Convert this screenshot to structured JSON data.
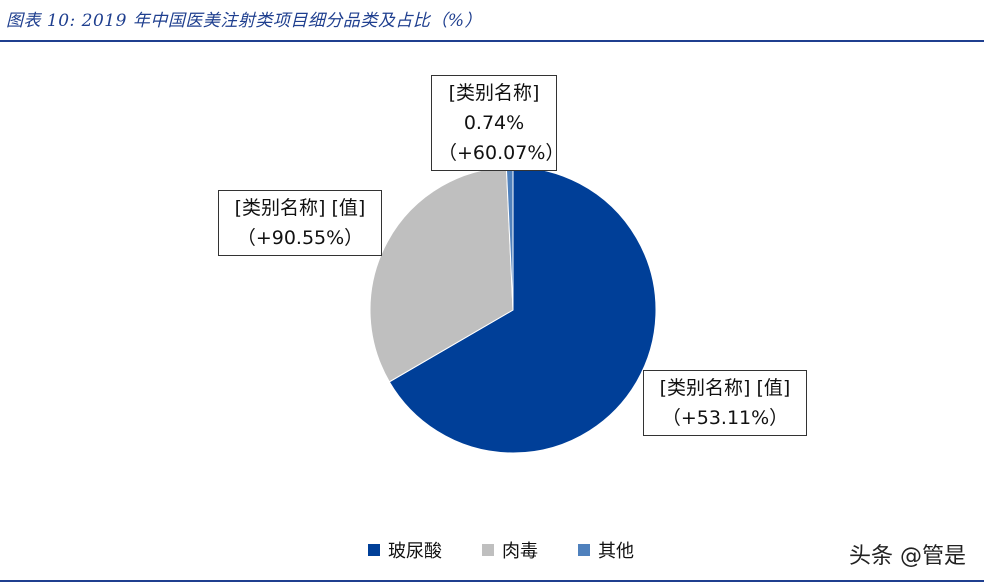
{
  "header": {
    "title": "图表 10:  2019 年中国医美注射类项目细分品类及占比（%）"
  },
  "chart_data": {
    "type": "pie",
    "categories": [
      "玻尿酸",
      "肉毒",
      "其他"
    ],
    "values": [
      66.62,
      32.64,
      0.74
    ],
    "colors": [
      "#003f98",
      "#bfbfbf",
      "#4f81bd"
    ],
    "data_labels": [
      {
        "line1": "[类别名称] [值]",
        "line2": "（+53.11%）"
      },
      {
        "line1": "[类别名称] [值]",
        "line2": "（+90.55%）"
      },
      {
        "line1": "[类别名称]",
        "line2": "0.74%",
        "line3": "（+60.07%）"
      }
    ],
    "legend_position": "bottom"
  },
  "watermark": "头条 @管是"
}
